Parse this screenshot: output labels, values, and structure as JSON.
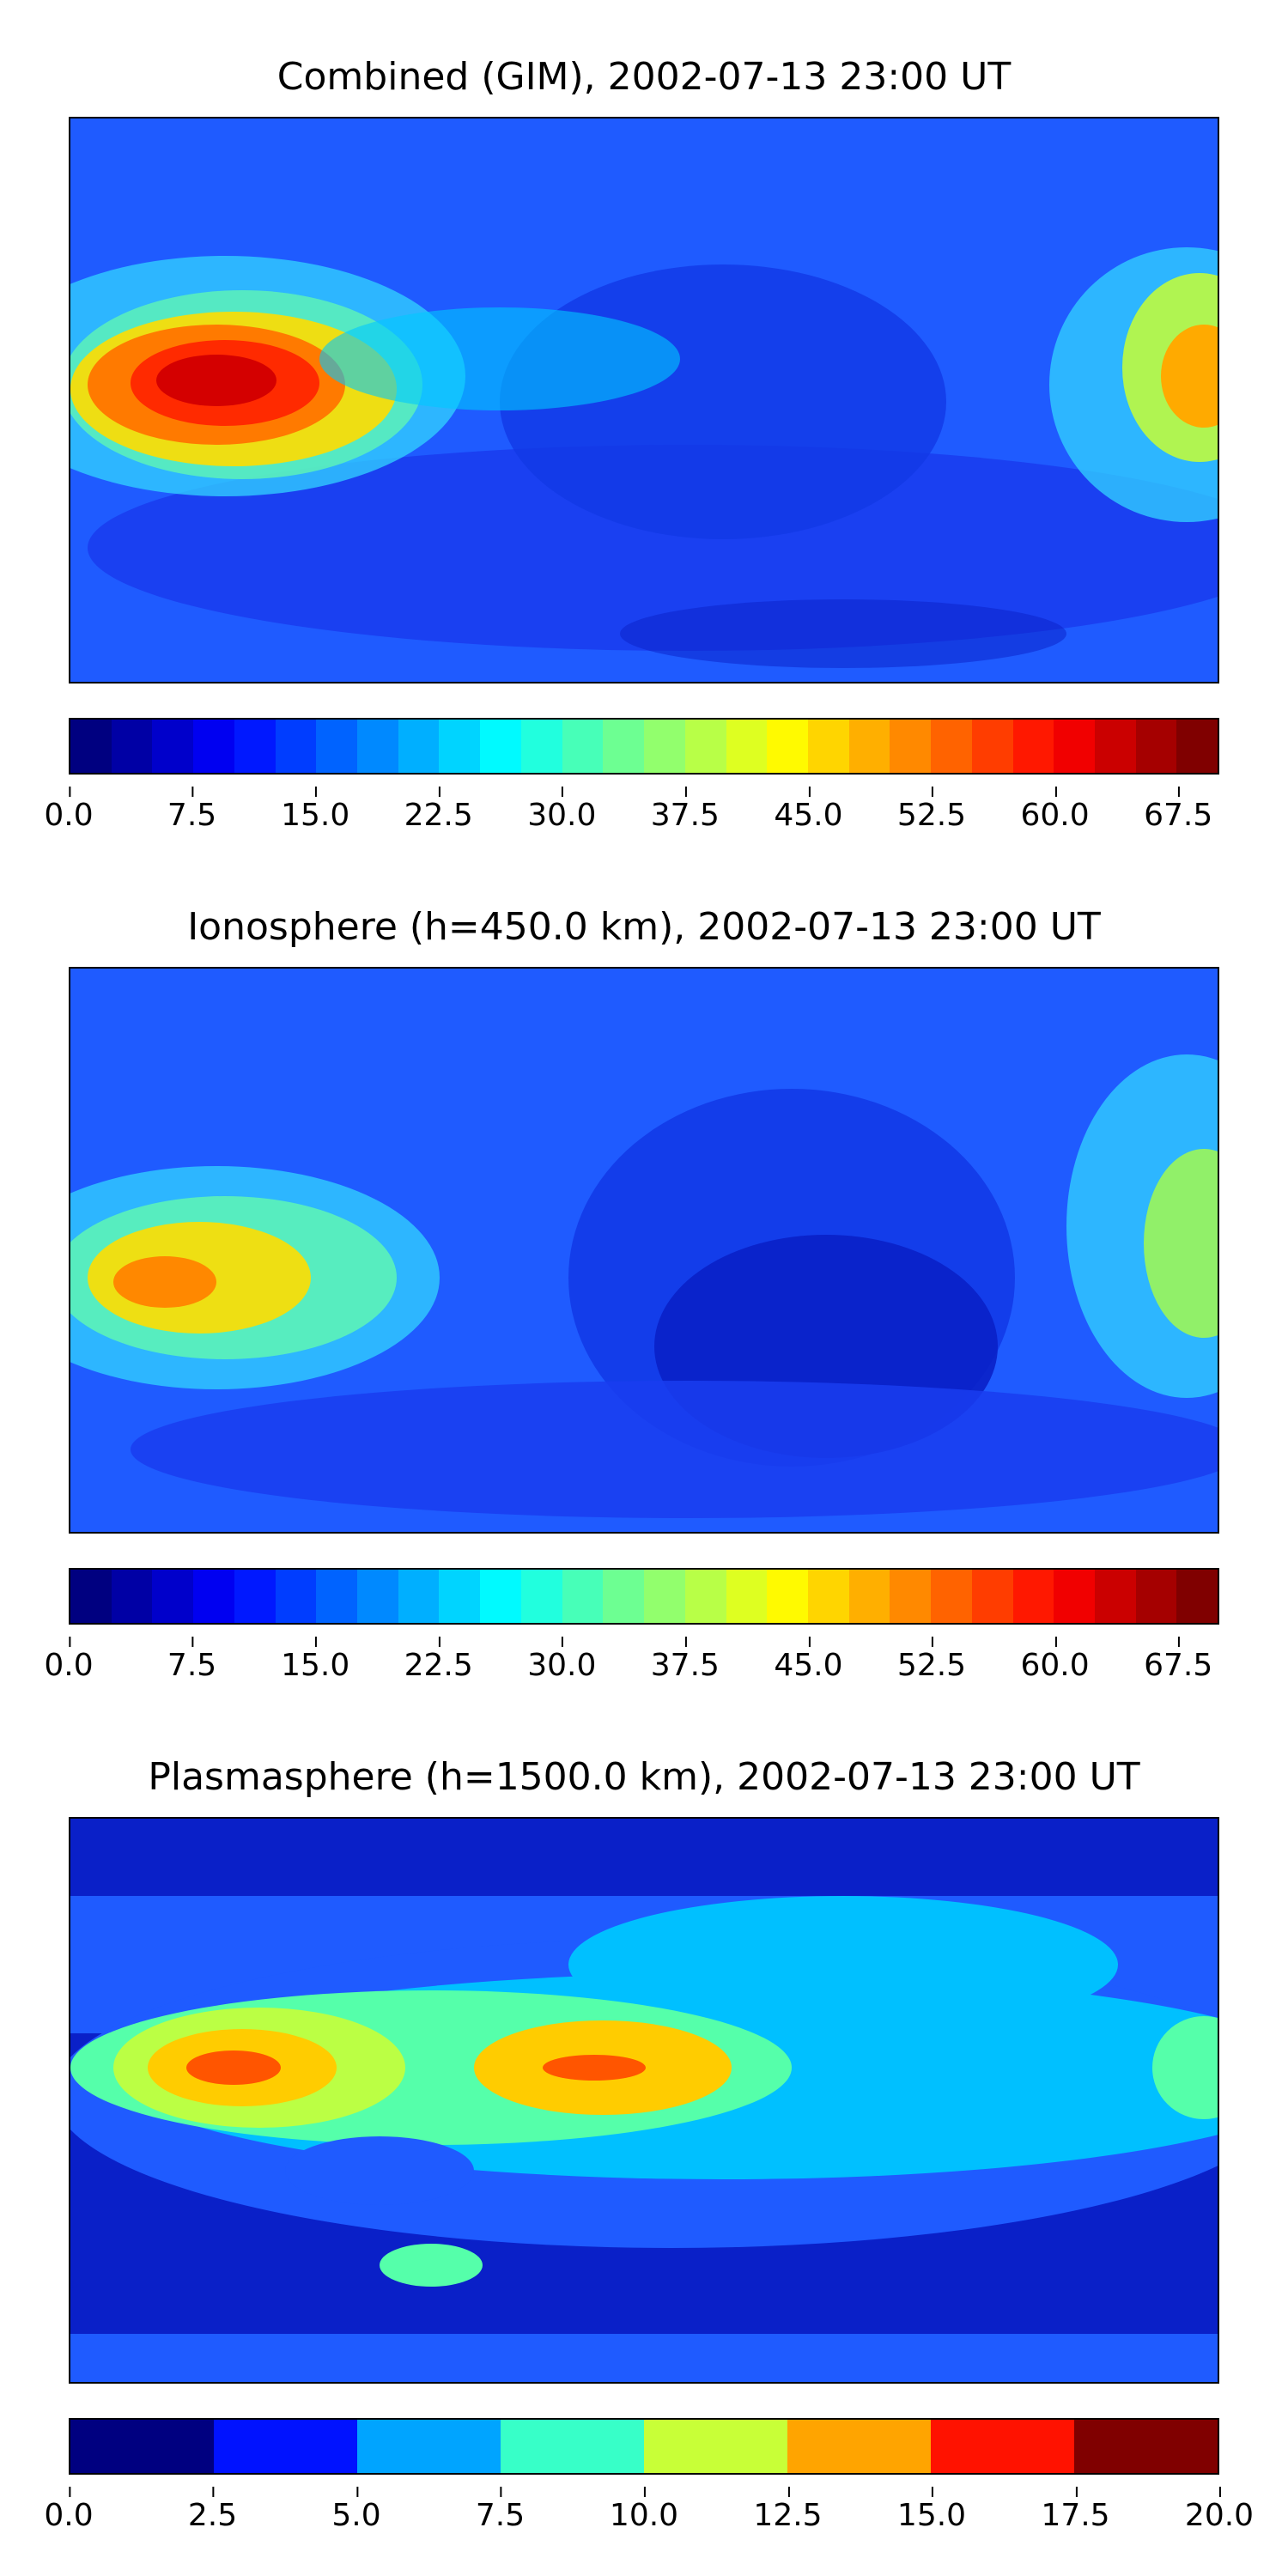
{
  "panels": [
    {
      "title": "Combined (GIM), 2002-07-13 23:00 UT",
      "colorbar": {
        "min": 0.0,
        "max": 70.0,
        "step": 2.5,
        "ticks": [
          "0.0",
          "7.5",
          "15.0",
          "22.5",
          "30.0",
          "37.5",
          "45.0",
          "52.5",
          "60.0",
          "67.5"
        ]
      }
    },
    {
      "title": "Ionosphere  (h=450.0 km), 2002-07-13 23:00 UT",
      "colorbar": {
        "min": 0.0,
        "max": 70.0,
        "step": 2.5,
        "ticks": [
          "0.0",
          "7.5",
          "15.0",
          "22.5",
          "30.0",
          "37.5",
          "45.0",
          "52.5",
          "60.0",
          "67.5"
        ]
      }
    },
    {
      "title": "Plasmasphere (h=1500.0 km), 2002-07-13 23:00 UT",
      "colorbar": {
        "min": 0.0,
        "max": 20.0,
        "step": 2.5,
        "ticks": [
          "0.0",
          "2.5",
          "5.0",
          "7.5",
          "10.0",
          "12.5",
          "15.0",
          "17.5",
          "20.0"
        ]
      }
    }
  ],
  "colormap": "jet"
}
